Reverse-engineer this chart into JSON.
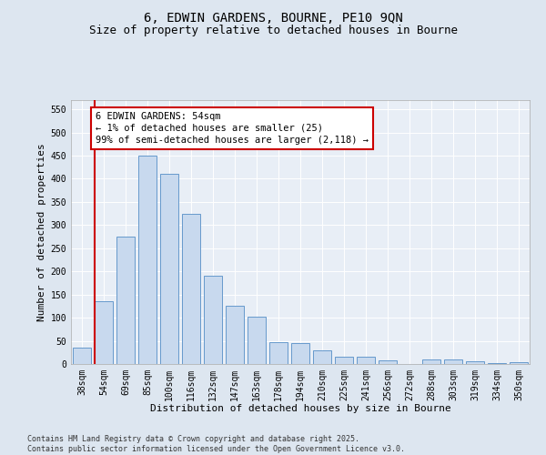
{
  "title": "6, EDWIN GARDENS, BOURNE, PE10 9QN",
  "subtitle": "Size of property relative to detached houses in Bourne",
  "xlabel": "Distribution of detached houses by size in Bourne",
  "ylabel": "Number of detached properties",
  "categories": [
    "38sqm",
    "54sqm",
    "69sqm",
    "85sqm",
    "100sqm",
    "116sqm",
    "132sqm",
    "147sqm",
    "163sqm",
    "178sqm",
    "194sqm",
    "210sqm",
    "225sqm",
    "241sqm",
    "256sqm",
    "272sqm",
    "288sqm",
    "303sqm",
    "319sqm",
    "334sqm",
    "350sqm"
  ],
  "values": [
    35,
    135,
    275,
    450,
    410,
    325,
    190,
    125,
    103,
    47,
    45,
    30,
    16,
    15,
    8,
    0,
    10,
    10,
    5,
    2,
    4
  ],
  "bar_color": "#c8d9ee",
  "bar_edge_color": "#6699cc",
  "vline_color": "#cc0000",
  "annotation_text": "6 EDWIN GARDENS: 54sqm\n← 1% of detached houses are smaller (25)\n99% of semi-detached houses are larger (2,118) →",
  "annotation_box_facecolor": "#ffffff",
  "annotation_box_edgecolor": "#cc0000",
  "ylim": [
    0,
    570
  ],
  "yticks": [
    0,
    50,
    100,
    150,
    200,
    250,
    300,
    350,
    400,
    450,
    500,
    550
  ],
  "bg_color": "#dde6f0",
  "plot_bg_color": "#e8eef6",
  "grid_color": "#ffffff",
  "footer": "Contains HM Land Registry data © Crown copyright and database right 2025.\nContains public sector information licensed under the Open Government Licence v3.0.",
  "title_fontsize": 10,
  "subtitle_fontsize": 9,
  "xlabel_fontsize": 8,
  "ylabel_fontsize": 8,
  "tick_fontsize": 7,
  "footer_fontsize": 6,
  "annotation_fontsize": 7.5
}
